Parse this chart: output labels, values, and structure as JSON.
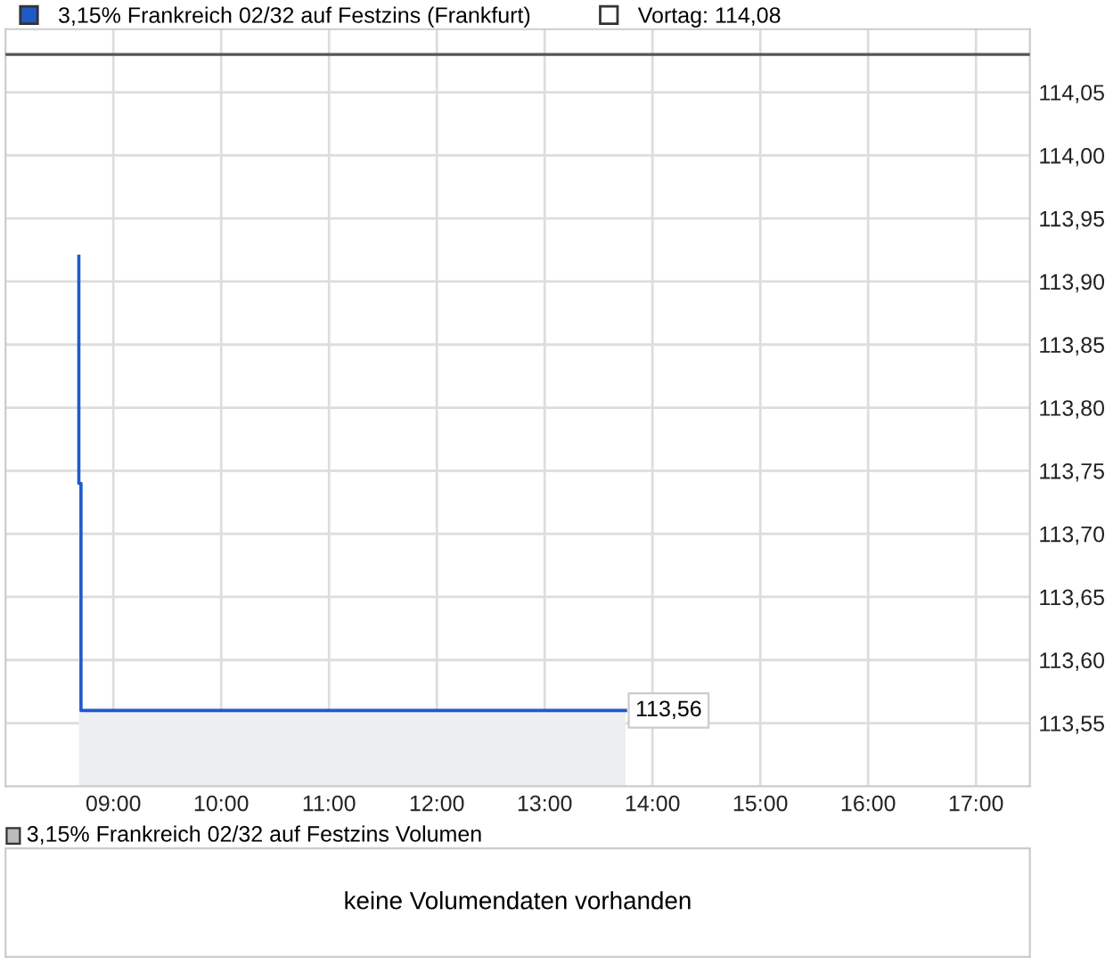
{
  "chart_data": [
    {
      "type": "area",
      "x": [
        8.68,
        8.68,
        8.7,
        8.7,
        13.75
      ],
      "series": [
        {
          "name": "3,15% Frankreich 02/32 auf Festzins (Frankfurt)",
          "color": "#1f5bc8",
          "values": [
            113.92,
            113.74,
            113.74,
            113.56,
            113.56
          ],
          "value_labels": [
            null,
            null,
            null,
            null,
            "113,56"
          ]
        }
      ],
      "xlim": [
        8.0,
        17.5
      ],
      "xticks": [
        {
          "value": 9,
          "label": "09:00"
        },
        {
          "value": 10,
          "label": "10:00"
        },
        {
          "value": 11,
          "label": "11:00"
        },
        {
          "value": 12,
          "label": "12:00"
        },
        {
          "value": 13,
          "label": "13:00"
        },
        {
          "value": 14,
          "label": "14:00"
        },
        {
          "value": 15,
          "label": "15:00"
        },
        {
          "value": 16,
          "label": "16:00"
        },
        {
          "value": 17,
          "label": "17:00"
        }
      ],
      "ylim": [
        113.5,
        114.1
      ],
      "yticks": [
        {
          "value": 113.55,
          "label": "113,55"
        },
        {
          "value": 113.6,
          "label": "113,60"
        },
        {
          "value": 113.65,
          "label": "113,65"
        },
        {
          "value": 113.7,
          "label": "113,70"
        },
        {
          "value": 113.75,
          "label": "113,75"
        },
        {
          "value": 113.8,
          "label": "113,80"
        },
        {
          "value": 113.85,
          "label": "113,85"
        },
        {
          "value": 113.9,
          "label": "113,90"
        },
        {
          "value": 113.95,
          "label": "113,95"
        },
        {
          "value": 114.0,
          "label": "114,00"
        },
        {
          "value": 114.05,
          "label": "114,05"
        }
      ],
      "ref_lines": [
        {
          "axis": "y",
          "value": 114.08,
          "label": "Vortag: 114,08",
          "color": "#555555"
        }
      ],
      "grid": true,
      "legend": "top left"
    },
    {
      "type": "other",
      "title": "3,15% Frankreich 02/32 auf Festzins Volumen",
      "annotations": [
        "keine Volumendaten vorhanden"
      ]
    }
  ]
}
